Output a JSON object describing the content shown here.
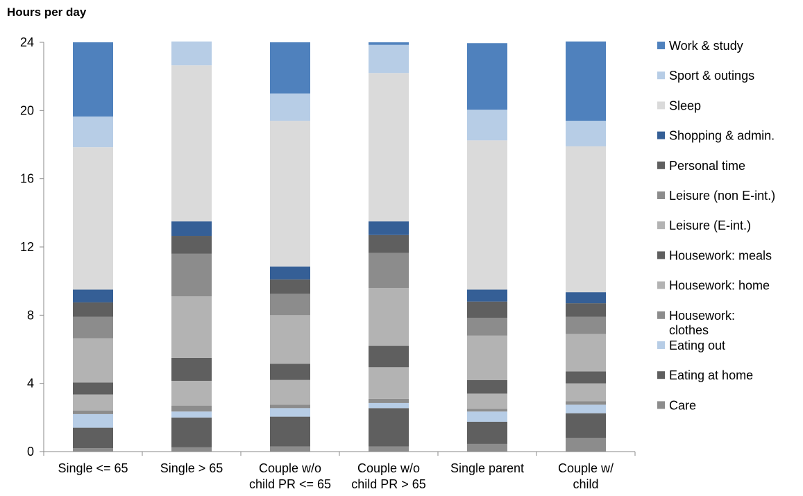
{
  "chart_data": {
    "type": "bar",
    "stacked": true,
    "title": "",
    "ylabel": "Hours per day",
    "xlabel": "",
    "ylim": [
      0,
      24
    ],
    "yticks": [
      0,
      4,
      8,
      12,
      16,
      20,
      24
    ],
    "grid": false,
    "legend_position": "right",
    "categories": [
      [
        "Single <= 65"
      ],
      [
        "Single > 65"
      ],
      [
        "Couple w/o",
        "child PR <= 65"
      ],
      [
        "Couple w/o",
        "child PR > 65"
      ],
      [
        "Single parent"
      ],
      [
        "Couple w/",
        "child"
      ]
    ],
    "series": [
      {
        "name": "Care",
        "color": "#8c8c8c",
        "values": [
          0.2,
          0.25,
          0.3,
          0.3,
          0.45,
          0.8
        ]
      },
      {
        "name": "Eating at home",
        "color": "#5f5f5f",
        "values": [
          1.2,
          1.75,
          1.75,
          2.25,
          1.3,
          1.45
        ]
      },
      {
        "name": "Eating out",
        "color": "#b7cde6",
        "values": [
          0.8,
          0.35,
          0.5,
          0.3,
          0.6,
          0.5
        ]
      },
      {
        "name": "Housework: clothes",
        "color": "#8c8c8c",
        "values": [
          0.2,
          0.35,
          0.2,
          0.25,
          0.15,
          0.2
        ]
      },
      {
        "name": "Housework: home",
        "color": "#b3b3b3",
        "values": [
          0.95,
          1.45,
          1.45,
          1.85,
          0.9,
          1.05
        ]
      },
      {
        "name": "Housework: meals",
        "color": "#5f5f5f",
        "values": [
          0.7,
          1.35,
          0.95,
          1.25,
          0.8,
          0.7
        ]
      },
      {
        "name": "Leisure (E-int.)",
        "color": "#b3b3b3",
        "values": [
          2.6,
          3.6,
          2.85,
          3.4,
          2.6,
          2.2
        ]
      },
      {
        "name": "Leisure (non E-int.)",
        "color": "#8c8c8c",
        "values": [
          1.25,
          2.5,
          1.25,
          2.05,
          1.05,
          1.0
        ]
      },
      {
        "name": "Personal time",
        "color": "#5f5f5f",
        "values": [
          0.85,
          1.05,
          0.85,
          1.05,
          0.95,
          0.8
        ]
      },
      {
        "name": "Shopping & admin.",
        "color": "#355f96",
        "values": [
          0.75,
          0.85,
          0.75,
          0.8,
          0.7,
          0.65
        ]
      },
      {
        "name": "Sleep",
        "color": "#dadada",
        "values": [
          8.35,
          9.15,
          8.55,
          8.7,
          8.75,
          8.55
        ]
      },
      {
        "name": "Sport & outings",
        "color": "#b7cde6",
        "values": [
          1.8,
          1.4,
          1.6,
          1.65,
          1.8,
          1.5
        ]
      },
      {
        "name": "Work & study",
        "color": "#4f81bd",
        "values": [
          4.35,
          0.0,
          3.0,
          0.15,
          3.9,
          4.65
        ]
      }
    ],
    "legend_order": [
      {
        "label": "Work & study",
        "color": "#4f81bd"
      },
      {
        "label": "Sport & outings",
        "color": "#b7cde6"
      },
      {
        "label": "Sleep",
        "color": "#dadada"
      },
      {
        "label": "Shopping & admin.",
        "color": "#355f96"
      },
      {
        "label": "Personal time",
        "color": "#5f5f5f"
      },
      {
        "label": "Leisure (non E-int.)",
        "color": "#8c8c8c"
      },
      {
        "label": "Leisure (E-int.)",
        "color": "#b3b3b3"
      },
      {
        "label": "Housework: meals",
        "color": "#5f5f5f"
      },
      {
        "label": "Housework: home",
        "color": "#b3b3b3"
      },
      {
        "label": "Housework:\nclothes",
        "color": "#8c8c8c"
      },
      {
        "label": "Eating out",
        "color": "#b7cde6"
      },
      {
        "label": "Eating at home",
        "color": "#5f5f5f"
      },
      {
        "label": "Care",
        "color": "#8c8c8c"
      }
    ]
  }
}
